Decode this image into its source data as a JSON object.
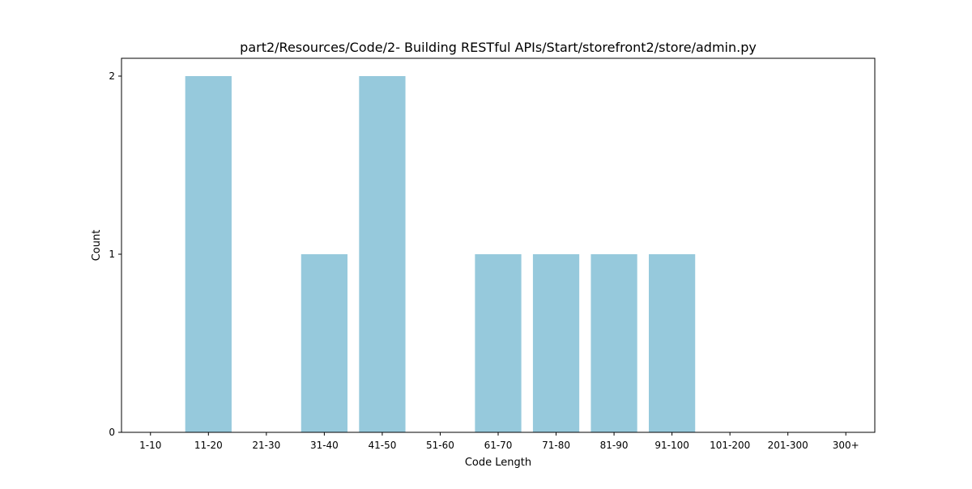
{
  "chart_data": {
    "type": "bar",
    "title": "part2/Resources/Code/2- Building RESTful APIs/Start/storefront2/store/admin.py",
    "xlabel": "Code Length",
    "ylabel": "Count",
    "categories": [
      "1-10",
      "11-20",
      "21-30",
      "31-40",
      "41-50",
      "51-60",
      "61-70",
      "71-80",
      "81-90",
      "91-100",
      "101-200",
      "201-300",
      "300+"
    ],
    "values": [
      0,
      2,
      0,
      1,
      2,
      0,
      1,
      1,
      1,
      1,
      0,
      0,
      0
    ],
    "yticks": [
      0,
      1,
      2
    ],
    "ylim": [
      0,
      2.1
    ],
    "grid": false,
    "bar_color": "#96c9dc"
  }
}
